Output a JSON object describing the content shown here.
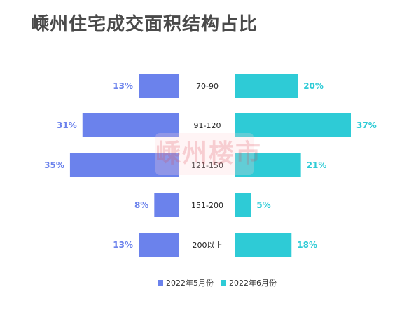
{
  "title": "嵊州住宅成交面积结构占比",
  "watermark": "嵊州楼市",
  "colors": {
    "left": "#6b82ec",
    "right": "#2ecbd6",
    "label": "#222222"
  },
  "chart_data": {
    "type": "bar",
    "orientation": "horizontal-butterfly",
    "categories": [
      "70-90",
      "91-120",
      "121-150",
      "151-200",
      "200以上"
    ],
    "series": [
      {
        "name": "2022年5月份",
        "values": [
          13,
          31,
          35,
          8,
          13
        ],
        "labels": [
          "13%",
          "31%",
          "35%",
          "8%",
          "13%"
        ],
        "color": "#6b82ec"
      },
      {
        "name": "2022年6月份",
        "values": [
          20,
          37,
          21,
          5,
          18
        ],
        "labels": [
          "20%",
          "37%",
          "21%",
          "5%",
          "18%"
        ],
        "color": "#2ecbd6"
      }
    ],
    "unit": "%",
    "xlim": [
      0,
      37
    ],
    "legend_position": "bottom"
  }
}
